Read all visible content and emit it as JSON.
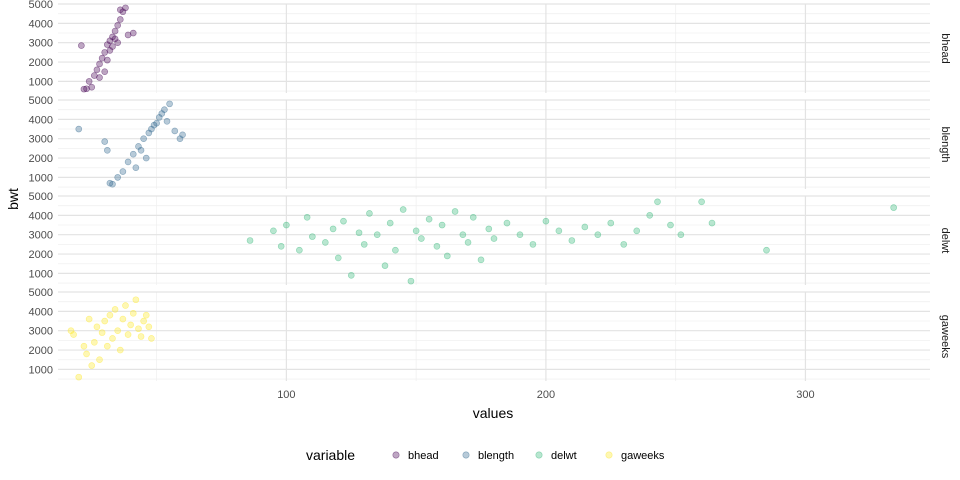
{
  "chart_data": {
    "type": "scatter",
    "xlabel": "values",
    "ylabel": "bwt",
    "xlim": [
      12,
      348
    ],
    "ylim": [
      400,
      5000
    ],
    "x_ticks": [
      100,
      200,
      300
    ],
    "y_ticks": [
      1000,
      2000,
      3000,
      4000,
      5000
    ],
    "grid": true,
    "facets": [
      "bhead",
      "blength",
      "delwt",
      "gaweeks"
    ],
    "legend": {
      "title": "variable",
      "placement": "bottom"
    },
    "series": [
      {
        "name": "bhead",
        "color": "#440154",
        "points": [
          [
            21,
            2850
          ],
          [
            22,
            600
          ],
          [
            23,
            620
          ],
          [
            24,
            1000
          ],
          [
            25,
            700
          ],
          [
            26,
            1300
          ],
          [
            27,
            1600
          ],
          [
            28,
            1900
          ],
          [
            29,
            2200
          ],
          [
            30,
            2500
          ],
          [
            31,
            2900
          ],
          [
            32,
            3100
          ],
          [
            33,
            3300
          ],
          [
            34,
            3600
          ],
          [
            35,
            3900
          ],
          [
            36,
            4200
          ],
          [
            37,
            4600
          ],
          [
            38,
            4800
          ],
          [
            39,
            3400
          ],
          [
            41,
            3500
          ],
          [
            28,
            1200
          ],
          [
            33,
            2800
          ],
          [
            35,
            3000
          ],
          [
            31,
            2100
          ],
          [
            36,
            4700
          ],
          [
            34,
            3200
          ],
          [
            32,
            2600
          ],
          [
            30,
            1500
          ]
        ]
      },
      {
        "name": "blength",
        "color": "#31688E",
        "points": [
          [
            20,
            3500
          ],
          [
            30,
            2850
          ],
          [
            31,
            2400
          ],
          [
            32,
            700
          ],
          [
            33,
            650
          ],
          [
            35,
            1000
          ],
          [
            37,
            1300
          ],
          [
            39,
            1800
          ],
          [
            41,
            2200
          ],
          [
            43,
            2600
          ],
          [
            45,
            3000
          ],
          [
            47,
            3300
          ],
          [
            49,
            3700
          ],
          [
            51,
            4100
          ],
          [
            53,
            4500
          ],
          [
            55,
            4800
          ],
          [
            57,
            3400
          ],
          [
            59,
            3000
          ],
          [
            60,
            3200
          ],
          [
            46,
            2000
          ],
          [
            50,
            3800
          ],
          [
            48,
            3500
          ],
          [
            44,
            2400
          ],
          [
            52,
            4300
          ],
          [
            54,
            3900
          ],
          [
            42,
            1500
          ]
        ]
      },
      {
        "name": "delwt",
        "color": "#35B779",
        "points": [
          [
            86,
            2700
          ],
          [
            95,
            3200
          ],
          [
            98,
            2400
          ],
          [
            100,
            3500
          ],
          [
            105,
            2200
          ],
          [
            108,
            3900
          ],
          [
            110,
            2900
          ],
          [
            115,
            2600
          ],
          [
            118,
            3300
          ],
          [
            120,
            1800
          ],
          [
            122,
            3700
          ],
          [
            125,
            900
          ],
          [
            128,
            3100
          ],
          [
            130,
            2500
          ],
          [
            132,
            4100
          ],
          [
            135,
            3000
          ],
          [
            138,
            1400
          ],
          [
            140,
            3600
          ],
          [
            142,
            2200
          ],
          [
            145,
            4300
          ],
          [
            148,
            600
          ],
          [
            150,
            3200
          ],
          [
            152,
            2800
          ],
          [
            155,
            3800
          ],
          [
            158,
            2400
          ],
          [
            160,
            3500
          ],
          [
            162,
            1900
          ],
          [
            165,
            4200
          ],
          [
            168,
            3000
          ],
          [
            170,
            2600
          ],
          [
            172,
            3900
          ],
          [
            175,
            1700
          ],
          [
            178,
            3300
          ],
          [
            180,
            2800
          ],
          [
            185,
            3600
          ],
          [
            190,
            3000
          ],
          [
            195,
            2500
          ],
          [
            200,
            3700
          ],
          [
            205,
            3200
          ],
          [
            210,
            2700
          ],
          [
            215,
            3400
          ],
          [
            220,
            3000
          ],
          [
            225,
            3600
          ],
          [
            230,
            2500
          ],
          [
            235,
            3200
          ],
          [
            240,
            4000
          ],
          [
            243,
            4700
          ],
          [
            248,
            3500
          ],
          [
            252,
            3000
          ],
          [
            260,
            4700
          ],
          [
            264,
            3600
          ],
          [
            285,
            2200
          ],
          [
            334,
            4400
          ]
        ]
      },
      {
        "name": "gaweeks",
        "color": "#FDE725",
        "points": [
          [
            17,
            3000
          ],
          [
            18,
            2800
          ],
          [
            20,
            600
          ],
          [
            22,
            2200
          ],
          [
            23,
            1800
          ],
          [
            24,
            3600
          ],
          [
            25,
            1200
          ],
          [
            26,
            2400
          ],
          [
            27,
            3200
          ],
          [
            28,
            1500
          ],
          [
            29,
            2900
          ],
          [
            30,
            3500
          ],
          [
            31,
            2200
          ],
          [
            32,
            3800
          ],
          [
            33,
            2600
          ],
          [
            34,
            4100
          ],
          [
            35,
            3000
          ],
          [
            36,
            2000
          ],
          [
            37,
            3600
          ],
          [
            38,
            4300
          ],
          [
            39,
            2800
          ],
          [
            40,
            3300
          ],
          [
            41,
            3900
          ],
          [
            42,
            4600
          ],
          [
            43,
            3100
          ],
          [
            44,
            2700
          ],
          [
            45,
            3500
          ],
          [
            46,
            3800
          ],
          [
            47,
            3200
          ],
          [
            48,
            2600
          ]
        ]
      }
    ]
  }
}
